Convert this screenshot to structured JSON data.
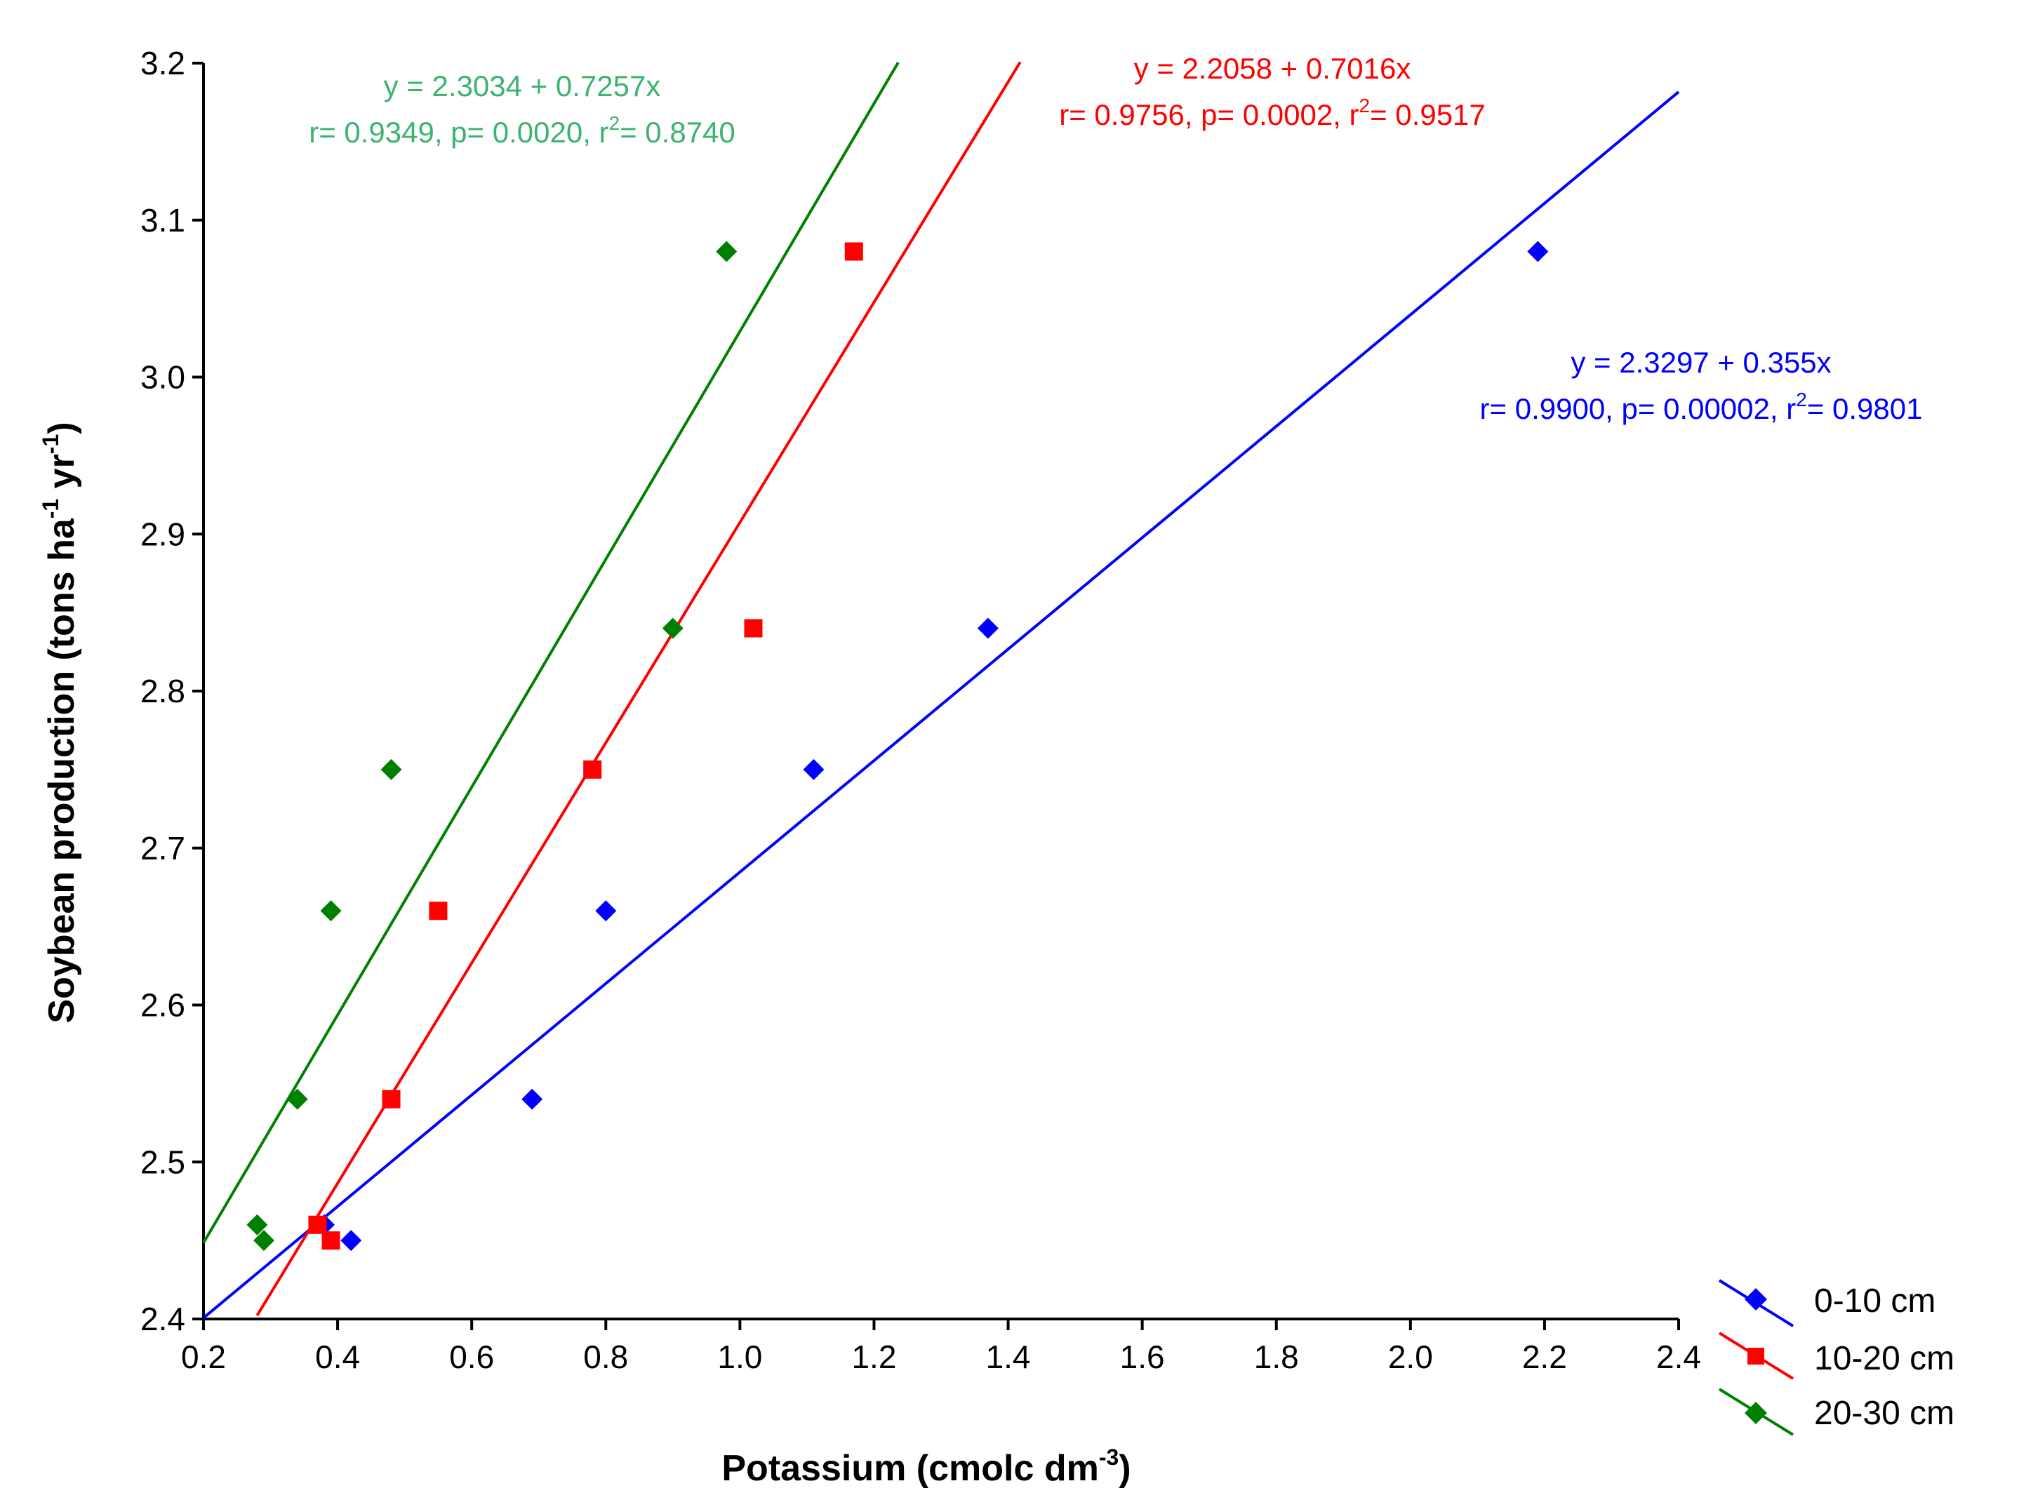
{
  "chart_data": {
    "type": "scatter",
    "xlabel": "Potassium (cmolc dm",
    "xlabel_sup": "-3",
    "xlabel_close": ")",
    "ylabel": "Soybean production (tons ha",
    "ylabel_sup1": "-1",
    "ylabel_mid": " yr",
    "ylabel_sup2": "-1",
    "ylabel_close": ")",
    "xlim": [
      0.2,
      2.4
    ],
    "ylim": [
      2.4,
      3.2
    ],
    "x_ticks": [
      "0.2",
      "0.4",
      "0.6",
      "0.8",
      "1.0",
      "1.2",
      "1.4",
      "1.6",
      "1.8",
      "2.0",
      "2.2",
      "2.4"
    ],
    "y_ticks": [
      "2.4",
      "2.5",
      "2.6",
      "2.7",
      "2.8",
      "2.9",
      "3.0",
      "3.1",
      "3.2"
    ],
    "legend_position": "bottom-right",
    "series": [
      {
        "name": "0-10 cm",
        "color": "#0000ff",
        "marker": "diamond",
        "x": [
          0.38,
          0.42,
          0.69,
          0.8,
          1.11,
          1.37,
          2.19
        ],
        "y": [
          2.46,
          2.45,
          2.54,
          2.66,
          2.75,
          2.84,
          3.08
        ],
        "fit": {
          "intercept": 2.3297,
          "slope": 0.355,
          "x_range": [
            0.2,
            2.4
          ]
        },
        "equation": "y = 2.3297 + 0.355x",
        "stats_pre": "r= 0.9900,  p= 0.00002,  r",
        "stats_sup": "2",
        "stats_post": "= 0.9801"
      },
      {
        "name": "10-20 cm",
        "color": "#ff0000",
        "marker": "square",
        "x": [
          0.37,
          0.39,
          0.48,
          0.55,
          0.78,
          1.02,
          1.17
        ],
        "y": [
          2.46,
          2.45,
          2.54,
          2.66,
          2.75,
          2.84,
          3.08
        ],
        "fit": {
          "intercept": 2.2058,
          "slope": 0.7016,
          "x_range": [
            0.28,
            1.418
          ]
        },
        "equation": "y = 2.2058 + 0.7016x",
        "stats_pre": "r= 0.9756,  p= 0.0002,  r",
        "stats_sup": "2",
        "stats_post": "= 0.9517"
      },
      {
        "name": "20-30 cm",
        "color": "#008000",
        "label_color": "#3cb371",
        "marker": "diamond",
        "x": [
          0.28,
          0.29,
          0.34,
          0.39,
          0.48,
          0.9,
          0.98
        ],
        "y": [
          2.46,
          2.45,
          2.54,
          2.66,
          2.75,
          2.84,
          3.08
        ],
        "fit": {
          "intercept": 2.3034,
          "slope": 0.7257,
          "x_range": [
            0.2,
            1.236
          ]
        },
        "equation": "y = 2.3034 + 0.7257x",
        "stats_pre": "r= 0.9349,  p= 0.0020,  r",
        "stats_sup": "2",
        "stats_post": "= 0.8740"
      }
    ]
  }
}
